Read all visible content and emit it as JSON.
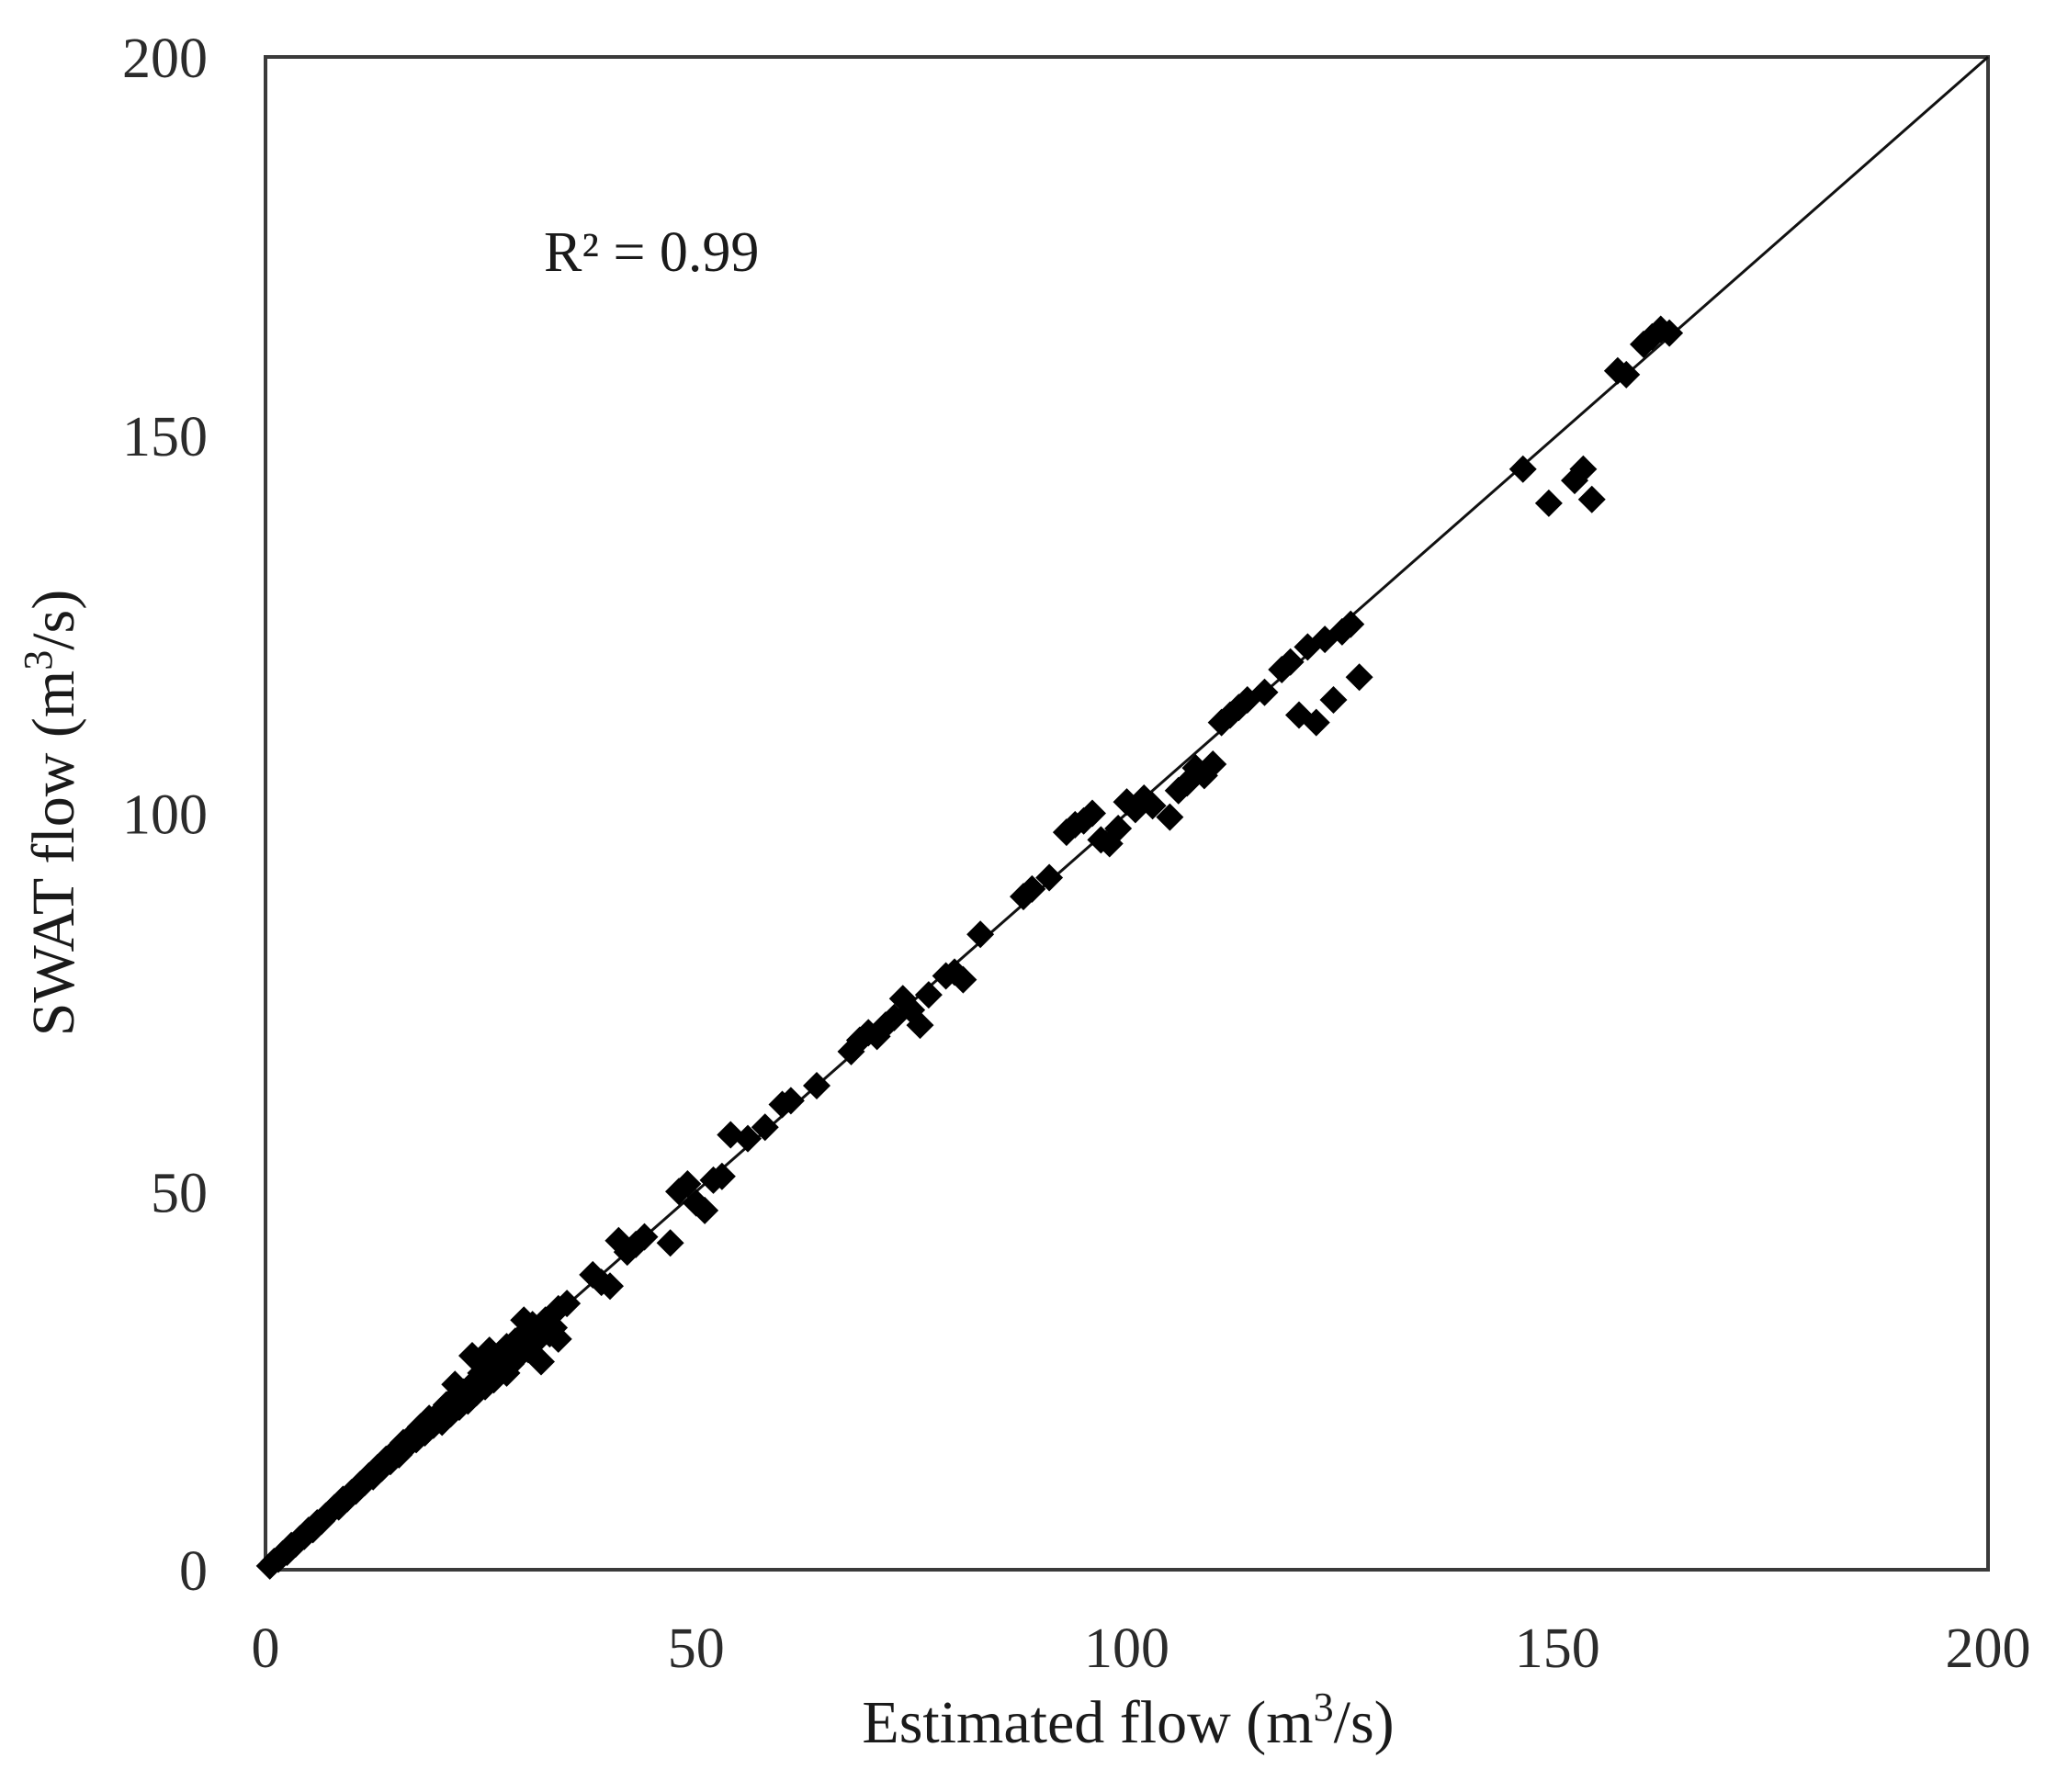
{
  "chart_data": {
    "type": "scatter",
    "xlabel": {
      "main": "Estimated flow (m",
      "sup": "3",
      "tail": "/s)"
    },
    "ylabel": {
      "main": "SWAT flow (m",
      "sup": "3",
      "tail": "/s)"
    },
    "xlim": [
      0,
      200
    ],
    "ylim": [
      0,
      200
    ],
    "xticks": [
      "0",
      "50",
      "100",
      "150",
      "200"
    ],
    "yticks": [
      "0",
      "50",
      "100",
      "150",
      "200"
    ],
    "grid": false,
    "legend": "none",
    "marker": "diamond",
    "marker_color": "#000000",
    "annotation": "R² = 0.99",
    "reference_line": {
      "from": [
        0,
        0
      ],
      "to": [
        200,
        200
      ]
    },
    "series": [
      {
        "points": [
          [
            0.5,
            0.5
          ],
          [
            1,
            1.1
          ],
          [
            1.5,
            1.4
          ],
          [
            2,
            2.1
          ],
          [
            2.5,
            2.3
          ],
          [
            3,
            3.2
          ],
          [
            3.5,
            3.4
          ],
          [
            4,
            4.1
          ],
          [
            4.5,
            4.4
          ],
          [
            5,
            5.2
          ],
          [
            5.5,
            5.3
          ],
          [
            6,
            6.2
          ],
          [
            6.5,
            6.4
          ],
          [
            7,
            7.1
          ],
          [
            7.5,
            7.6
          ],
          [
            8,
            8.2
          ],
          [
            8.5,
            8.3
          ],
          [
            9,
            9.3
          ],
          [
            9.5,
            9.4
          ],
          [
            10,
            10.2
          ],
          [
            10.5,
            10.4
          ],
          [
            11,
            11.3
          ],
          [
            11.5,
            11.5
          ],
          [
            12,
            12.4
          ],
          [
            12.5,
            12.3
          ],
          [
            13,
            13.5
          ],
          [
            13.5,
            13.4
          ],
          [
            14,
            14.6
          ],
          [
            14.5,
            14.3
          ],
          [
            15,
            15.6
          ],
          [
            15.5,
            15.2
          ],
          [
            16,
            16.8
          ],
          [
            16.5,
            16.4
          ],
          [
            17,
            17.7
          ],
          [
            17.5,
            17.2
          ],
          [
            18,
            18.9
          ],
          [
            18.5,
            18.1
          ],
          [
            19,
            20
          ],
          [
            19.5,
            19.1
          ],
          [
            20,
            20.5
          ],
          [
            20.5,
            19.5
          ],
          [
            21,
            21.8
          ],
          [
            21.5,
            20.6
          ],
          [
            22,
            22.8
          ],
          [
            22.5,
            21.5
          ],
          [
            23,
            23.5
          ],
          [
            23.5,
            22.3
          ],
          [
            24,
            24.5
          ],
          [
            24.5,
            23.4
          ],
          [
            25,
            26
          ],
          [
            25.5,
            24.2
          ],
          [
            26,
            27.1
          ],
          [
            26.5,
            25.1
          ],
          [
            27,
            28.3
          ],
          [
            27.5,
            26.4
          ],
          [
            28,
            29.5
          ],
          [
            28.5,
            27.2
          ],
          [
            29,
            30.2
          ],
          [
            29.5,
            28.4
          ],
          [
            30,
            31.2
          ],
          [
            30.5,
            29.1
          ],
          [
            31,
            32.4
          ],
          [
            31.5,
            30.3
          ],
          [
            32,
            27.5
          ],
          [
            32.5,
            33
          ],
          [
            33,
            31.2
          ],
          [
            33.5,
            32
          ],
          [
            34,
            34.5
          ],
          [
            35,
            35.2
          ],
          [
            26,
            29
          ],
          [
            24,
            28.3
          ],
          [
            22,
            24.5
          ],
          [
            28,
            26
          ],
          [
            30,
            33
          ],
          [
            34,
            30.5
          ],
          [
            38,
            39
          ],
          [
            39,
            38
          ],
          [
            40,
            37.5
          ],
          [
            41,
            43.5
          ],
          [
            42,
            42
          ],
          [
            43,
            43
          ],
          [
            44,
            44
          ],
          [
            47,
            43.2
          ],
          [
            48,
            50
          ],
          [
            49,
            51
          ],
          [
            50,
            48.5
          ],
          [
            51,
            47.5
          ],
          [
            52,
            51.5
          ],
          [
            53,
            52
          ],
          [
            54,
            57.5
          ],
          [
            56,
            57
          ],
          [
            58,
            58.5
          ],
          [
            60,
            61.5
          ],
          [
            61,
            62
          ],
          [
            64,
            64
          ],
          [
            68,
            68.5
          ],
          [
            69,
            70
          ],
          [
            70,
            71
          ],
          [
            71,
            70.5
          ],
          [
            72,
            72
          ],
          [
            73,
            73
          ],
          [
            74,
            75.5
          ],
          [
            75,
            74
          ],
          [
            76,
            72
          ],
          [
            77,
            76
          ],
          [
            79,
            78.5
          ],
          [
            80,
            79
          ],
          [
            81,
            78
          ],
          [
            83,
            84
          ],
          [
            88,
            89
          ],
          [
            89,
            90
          ],
          [
            91,
            91.5
          ],
          [
            93,
            97.5
          ],
          [
            94,
            98.5
          ],
          [
            95,
            99
          ],
          [
            96,
            100
          ],
          [
            97,
            96.5
          ],
          [
            98,
            96
          ],
          [
            99,
            98
          ],
          [
            100,
            101.5
          ],
          [
            101,
            100.5
          ],
          [
            102,
            102
          ],
          [
            103,
            101
          ],
          [
            105,
            99.5
          ],
          [
            106,
            103
          ],
          [
            107,
            104
          ],
          [
            108,
            106
          ],
          [
            109,
            105
          ],
          [
            110,
            106.5
          ],
          [
            111,
            112
          ],
          [
            112,
            113
          ],
          [
            113,
            114
          ],
          [
            114,
            115
          ],
          [
            116,
            116
          ],
          [
            118,
            119
          ],
          [
            119,
            120
          ],
          [
            120,
            113
          ],
          [
            121,
            122
          ],
          [
            122,
            112
          ],
          [
            123,
            123
          ],
          [
            124,
            115
          ],
          [
            125,
            124
          ],
          [
            126,
            125
          ],
          [
            127,
            118
          ],
          [
            146,
            145.5
          ],
          [
            149,
            141
          ],
          [
            152,
            144
          ],
          [
            153,
            145.5
          ],
          [
            154,
            141.5
          ],
          [
            157,
            158.5
          ],
          [
            158,
            158
          ],
          [
            160,
            162
          ],
          [
            161,
            163
          ],
          [
            162,
            164
          ],
          [
            163,
            163.5
          ]
        ]
      }
    ]
  }
}
